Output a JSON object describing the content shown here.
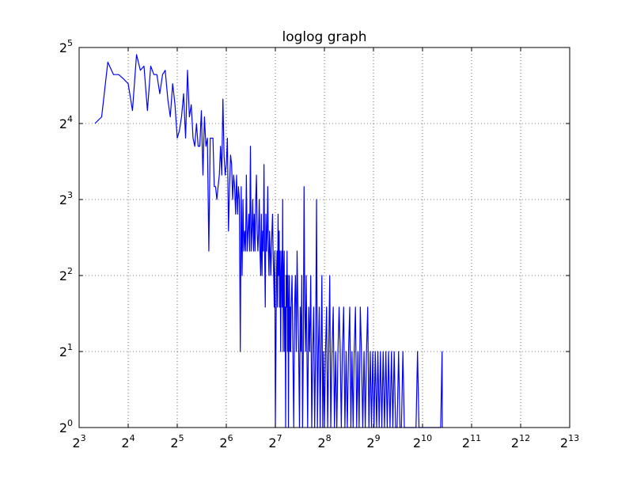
{
  "chart_data": {
    "type": "line",
    "title": "loglog graph",
    "xlabel": "",
    "ylabel": "",
    "x_scale": "log2",
    "y_scale": "log2",
    "xlim": [
      8,
      8192
    ],
    "ylim": [
      1,
      32
    ],
    "grid": true,
    "grid_style": "dotted",
    "x_ticks": [
      {
        "value": 8,
        "base": "2",
        "exp": "3"
      },
      {
        "value": 16,
        "base": "2",
        "exp": "4"
      },
      {
        "value": 32,
        "base": "2",
        "exp": "5"
      },
      {
        "value": 64,
        "base": "2",
        "exp": "6"
      },
      {
        "value": 128,
        "base": "2",
        "exp": "7"
      },
      {
        "value": 256,
        "base": "2",
        "exp": "8"
      },
      {
        "value": 512,
        "base": "2",
        "exp": "9"
      },
      {
        "value": 1024,
        "base": "2",
        "exp": "10"
      },
      {
        "value": 2048,
        "base": "2",
        "exp": "11"
      },
      {
        "value": 4096,
        "base": "2",
        "exp": "12"
      },
      {
        "value": 8192,
        "base": "2",
        "exp": "13"
      }
    ],
    "y_ticks": [
      {
        "value": 1,
        "base": "2",
        "exp": "0"
      },
      {
        "value": 2,
        "base": "2",
        "exp": "1"
      },
      {
        "value": 4,
        "base": "2",
        "exp": "2"
      },
      {
        "value": 8,
        "base": "2",
        "exp": "3"
      },
      {
        "value": 16,
        "base": "2",
        "exp": "4"
      },
      {
        "value": 32,
        "base": "2",
        "exp": "5"
      }
    ],
    "series": [
      {
        "color": "#0000ff",
        "points": [
          [
            10,
            16
          ],
          [
            11,
            17
          ],
          [
            12,
            28
          ],
          [
            13,
            25
          ],
          [
            14,
            25
          ],
          [
            15,
            24
          ],
          [
            16,
            23
          ],
          [
            17,
            18
          ],
          [
            18,
            30
          ],
          [
            19,
            26
          ],
          [
            20,
            27
          ],
          [
            21,
            18
          ],
          [
            22,
            27
          ],
          [
            23,
            25
          ],
          [
            24,
            25
          ],
          [
            25,
            21
          ],
          [
            26,
            25
          ],
          [
            27,
            26
          ],
          [
            28,
            20
          ],
          [
            29,
            17
          ],
          [
            30,
            23
          ],
          [
            31,
            19
          ],
          [
            32,
            14
          ],
          [
            33,
            15
          ],
          [
            34,
            17
          ],
          [
            35,
            21
          ],
          [
            36,
            14
          ],
          [
            37,
            26
          ],
          [
            38,
            17
          ],
          [
            39,
            19
          ],
          [
            40,
            14
          ],
          [
            41,
            13
          ],
          [
            42,
            16
          ],
          [
            43,
            13
          ],
          [
            44,
            13
          ],
          [
            45,
            18
          ],
          [
            46,
            10
          ],
          [
            47,
            17
          ],
          [
            48,
            13
          ],
          [
            49,
            14
          ],
          [
            50,
            5
          ],
          [
            51,
            14
          ],
          [
            52,
            14
          ],
          [
            53,
            14
          ],
          [
            54,
            9
          ],
          [
            55,
            9
          ],
          [
            56,
            8
          ],
          [
            57,
            9
          ],
          [
            58,
            10
          ],
          [
            59,
            13
          ],
          [
            60,
            10
          ],
          [
            61,
            20
          ],
          [
            62,
            12
          ],
          [
            63,
            10
          ],
          [
            64,
            11
          ],
          [
            65,
            14
          ],
          [
            66,
            6
          ],
          [
            67,
            9
          ],
          [
            68,
            12
          ],
          [
            69,
            11
          ],
          [
            70,
            8
          ],
          [
            71,
            10
          ],
          [
            72,
            9
          ],
          [
            73,
            7
          ],
          [
            74,
            10
          ],
          [
            75,
            7
          ],
          [
            76,
            9
          ],
          [
            77,
            8
          ],
          [
            78,
            2
          ],
          [
            79,
            9
          ],
          [
            80,
            4
          ],
          [
            81,
            8
          ],
          [
            82,
            5
          ],
          [
            83,
            6
          ],
          [
            84,
            5
          ],
          [
            85,
            10
          ],
          [
            86,
            5
          ],
          [
            87,
            6
          ],
          [
            88,
            7
          ],
          [
            89,
            5
          ],
          [
            90,
            13
          ],
          [
            91,
            5
          ],
          [
            92,
            6
          ],
          [
            93,
            8
          ],
          [
            94,
            5
          ],
          [
            95,
            7
          ],
          [
            96,
            5
          ],
          [
            97,
            8
          ],
          [
            98,
            10
          ],
          [
            99,
            6
          ],
          [
            100,
            5
          ],
          [
            101,
            6
          ],
          [
            102,
            8
          ],
          [
            103,
            5
          ],
          [
            104,
            4
          ],
          [
            105,
            7
          ],
          [
            106,
            4
          ],
          [
            107,
            6
          ],
          [
            108,
            5
          ],
          [
            109,
            11
          ],
          [
            110,
            5
          ],
          [
            111,
            3
          ],
          [
            112,
            7
          ],
          [
            113,
            5
          ],
          [
            114,
            6
          ],
          [
            115,
            9
          ],
          [
            116,
            5
          ],
          [
            117,
            4
          ],
          [
            118,
            6
          ],
          [
            119,
            5
          ],
          [
            120,
            4
          ],
          [
            121,
            5
          ],
          [
            122,
            6
          ],
          [
            123,
            7
          ],
          [
            124,
            5
          ],
          [
            125,
            4
          ],
          [
            126,
            3
          ],
          [
            127,
            5
          ],
          [
            128,
            1
          ],
          [
            129,
            2
          ],
          [
            130,
            4
          ],
          [
            131,
            5
          ],
          [
            132,
            3
          ],
          [
            133,
            7
          ],
          [
            134,
            4
          ],
          [
            135,
            6
          ],
          [
            136,
            3
          ],
          [
            137,
            5
          ],
          [
            138,
            2
          ],
          [
            139,
            4
          ],
          [
            140,
            5
          ],
          [
            141,
            3
          ],
          [
            142,
            8
          ],
          [
            143,
            2
          ],
          [
            144,
            4
          ],
          [
            145,
            5
          ],
          [
            146,
            2
          ],
          [
            147,
            3
          ],
          [
            148,
            1
          ],
          [
            149,
            4
          ],
          [
            150,
            3
          ],
          [
            151,
            5
          ],
          [
            152,
            2
          ],
          [
            153,
            4
          ],
          [
            154,
            1
          ],
          [
            155,
            3
          ],
          [
            156,
            4
          ],
          [
            157,
            2
          ],
          [
            158,
            3
          ],
          [
            159,
            2
          ],
          [
            160,
            3
          ],
          [
            162,
            4
          ],
          [
            164,
            2
          ],
          [
            166,
            1
          ],
          [
            168,
            3
          ],
          [
            170,
            4
          ],
          [
            172,
            2
          ],
          [
            174,
            5
          ],
          [
            176,
            3
          ],
          [
            178,
            2
          ],
          [
            180,
            1
          ],
          [
            182,
            3
          ],
          [
            184,
            2
          ],
          [
            186,
            4
          ],
          [
            188,
            1
          ],
          [
            190,
            2
          ],
          [
            192,
            9
          ],
          [
            194,
            3
          ],
          [
            196,
            2
          ],
          [
            198,
            4
          ],
          [
            200,
            2
          ],
          [
            202,
            1
          ],
          [
            205,
            3
          ],
          [
            208,
            2
          ],
          [
            211,
            4
          ],
          [
            214,
            1
          ],
          [
            217,
            2
          ],
          [
            220,
            3
          ],
          [
            223,
            1
          ],
          [
            226,
            2
          ],
          [
            229,
            8
          ],
          [
            232,
            1
          ],
          [
            235,
            2
          ],
          [
            238,
            3
          ],
          [
            241,
            1
          ],
          [
            244,
            2
          ],
          [
            247,
            4
          ],
          [
            250,
            1
          ],
          [
            253,
            2
          ],
          [
            256,
            1
          ],
          [
            260,
            2
          ],
          [
            264,
            3
          ],
          [
            268,
            1
          ],
          [
            272,
            2
          ],
          [
            276,
            4
          ],
          [
            280,
            1
          ],
          [
            285,
            2
          ],
          [
            290,
            3
          ],
          [
            295,
            1
          ],
          [
            300,
            2
          ],
          [
            305,
            1
          ],
          [
            310,
            2
          ],
          [
            315,
            3
          ],
          [
            320,
            2
          ],
          [
            325,
            1
          ],
          [
            330,
            2
          ],
          [
            336,
            3
          ],
          [
            342,
            1
          ],
          [
            348,
            2
          ],
          [
            354,
            1
          ],
          [
            360,
            2
          ],
          [
            366,
            3
          ],
          [
            372,
            1
          ],
          [
            378,
            2
          ],
          [
            384,
            1
          ],
          [
            390,
            2
          ],
          [
            397,
            3
          ],
          [
            404,
            1
          ],
          [
            411,
            2
          ],
          [
            418,
            1
          ],
          [
            425,
            3
          ],
          [
            432,
            2
          ],
          [
            440,
            1
          ],
          [
            448,
            2
          ],
          [
            456,
            1
          ],
          [
            464,
            2
          ],
          [
            472,
            3
          ],
          [
            480,
            1
          ],
          [
            489,
            2
          ],
          [
            498,
            1
          ],
          [
            507,
            2
          ],
          [
            516,
            1
          ],
          [
            525,
            2
          ],
          [
            535,
            1
          ],
          [
            545,
            2
          ],
          [
            555,
            1
          ],
          [
            565,
            2
          ],
          [
            576,
            1
          ],
          [
            587,
            2
          ],
          [
            598,
            1
          ],
          [
            610,
            2
          ],
          [
            622,
            1
          ],
          [
            634,
            2
          ],
          [
            647,
            1
          ],
          [
            660,
            2
          ],
          [
            673,
            1
          ],
          [
            686,
            2
          ],
          [
            700,
            1
          ],
          [
            715,
            1
          ],
          [
            730,
            2
          ],
          [
            745,
            1
          ],
          [
            760,
            1
          ],
          [
            776,
            2
          ],
          [
            792,
            1
          ],
          [
            808,
            1
          ],
          [
            825,
            1
          ],
          [
            842,
            1
          ],
          [
            860,
            1
          ],
          [
            878,
            1
          ],
          [
            896,
            1
          ],
          [
            915,
            1
          ],
          [
            934,
            1
          ],
          [
            954,
            2
          ],
          [
            974,
            1
          ],
          [
            994,
            1
          ],
          [
            1014,
            1
          ],
          [
            1035,
            1
          ],
          [
            1056,
            1
          ],
          [
            1078,
            1
          ],
          [
            1100,
            1
          ],
          [
            1123,
            1
          ],
          [
            1146,
            1
          ],
          [
            1170,
            1
          ],
          [
            1194,
            1
          ],
          [
            1219,
            1
          ],
          [
            1244,
            1
          ],
          [
            1270,
            1
          ],
          [
            1296,
            1
          ],
          [
            1323,
            1
          ],
          [
            1350,
            2
          ],
          [
            1355,
            1
          ]
        ]
      }
    ]
  }
}
